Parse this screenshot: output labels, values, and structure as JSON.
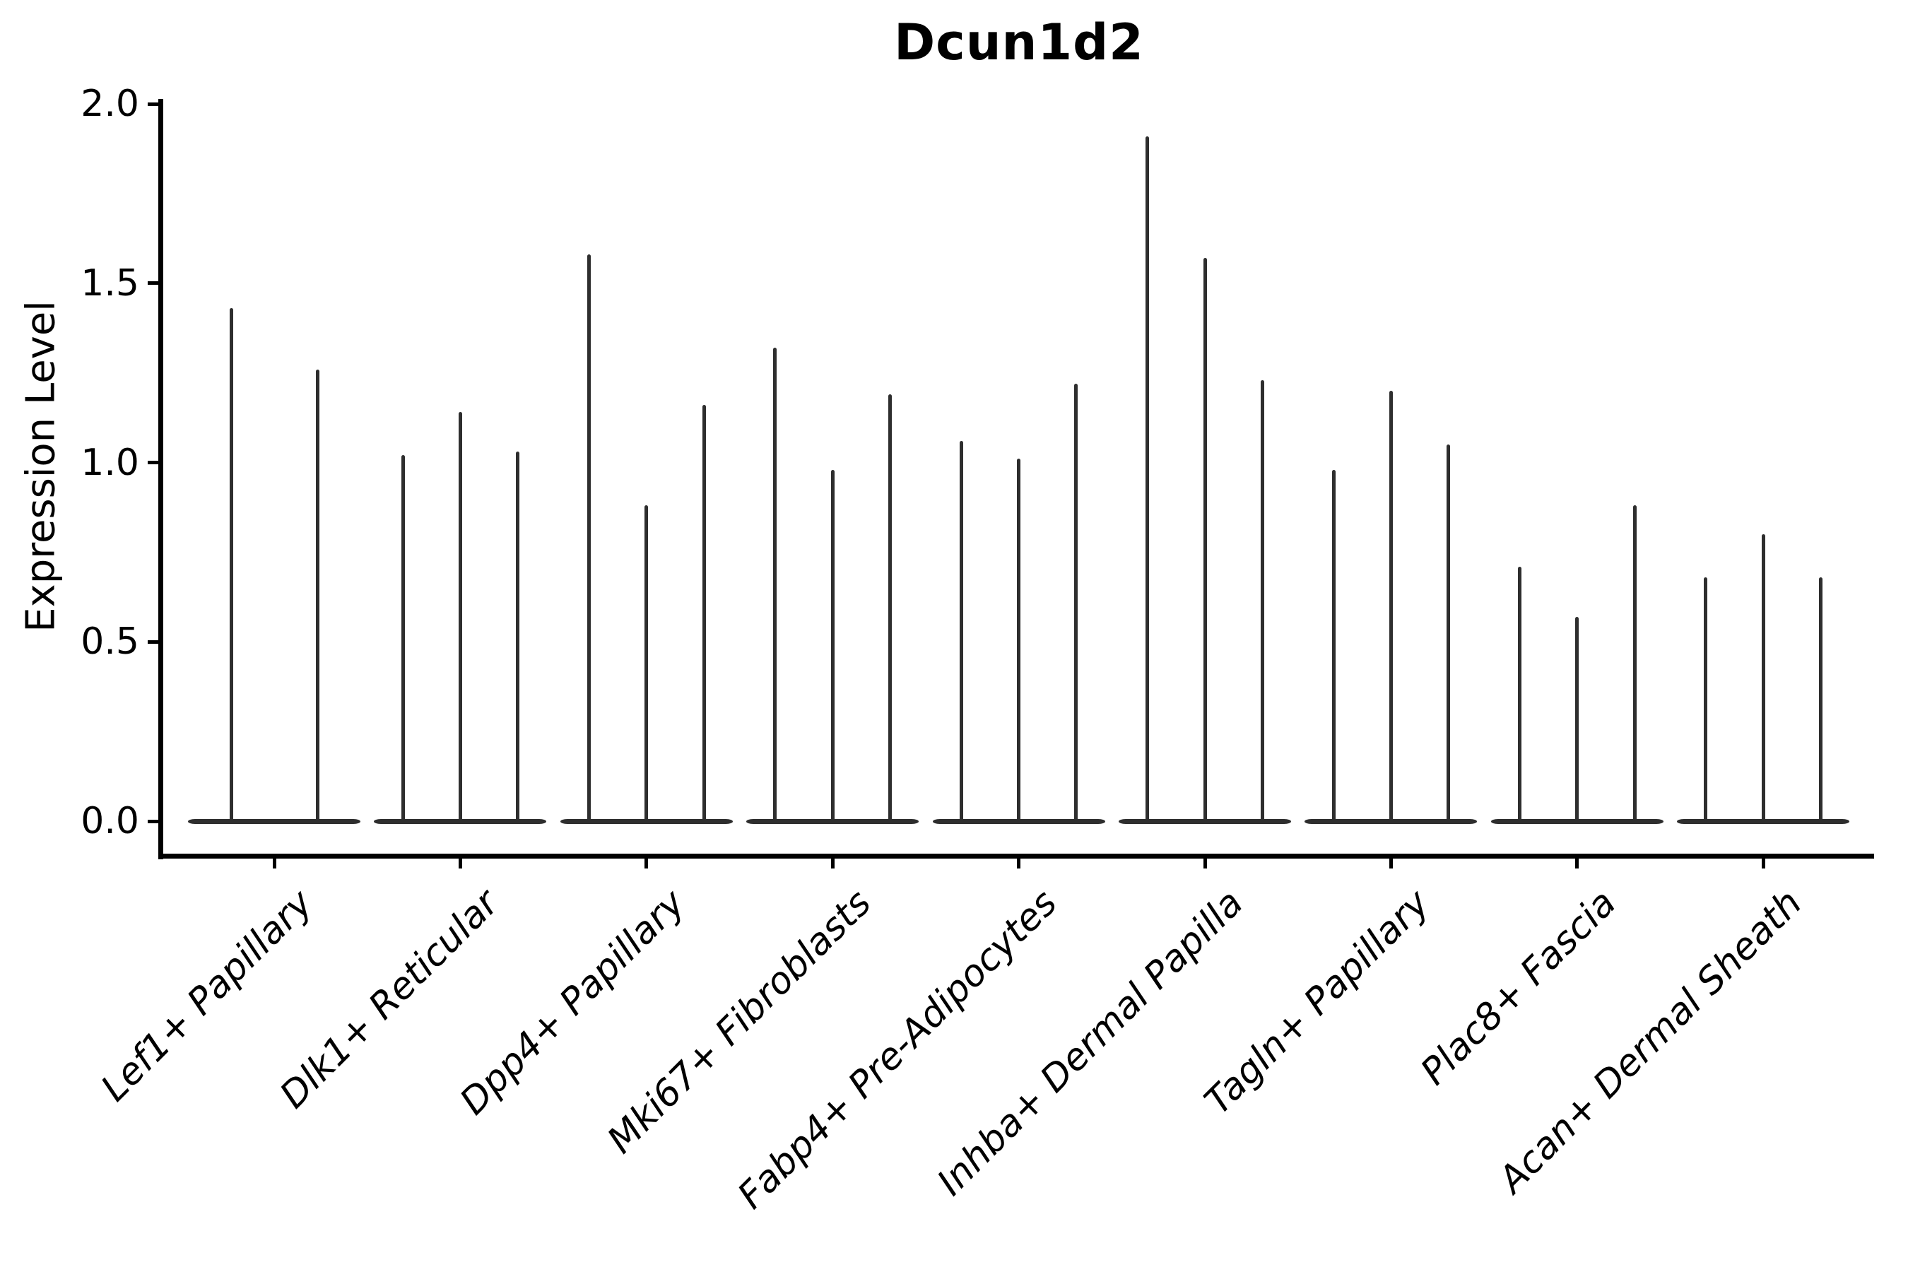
{
  "chart_data": {
    "type": "violin",
    "title": "Dcun1d2",
    "xlabel": "",
    "ylabel": "Expression Level",
    "ylim": [
      -0.1,
      2.01
    ],
    "yticks": [
      0,
      0.5,
      1,
      1.5,
      2
    ],
    "ytick_labels": [
      "0.0",
      "0.5",
      "1.0",
      "1.5",
      "2.0"
    ],
    "grid": false,
    "legend": "none",
    "baseline_value": 0,
    "violin_glyph": "flat-base-at-zero-with-spike-to-max",
    "categories": [
      "Lef1+ Papillary",
      "Dlk1+ Reticular",
      "Dpp4+ Papillary",
      "Mki67+ Fibroblasts",
      "Fabp4+ Pre-Adipocytes",
      "Inhba+ Dermal Papilla",
      "Tagln+ Papillary",
      "Plac8+ Fascia",
      "Acan+ Dermal Sheath"
    ],
    "groups": [
      {
        "category": "Lef1+ Papillary",
        "violin_maxima": [
          1.43,
          1.26
        ]
      },
      {
        "category": "Dlk1+ Reticular",
        "violin_maxima": [
          1.02,
          1.14,
          1.03
        ]
      },
      {
        "category": "Dpp4+ Papillary",
        "violin_maxima": [
          1.58,
          0.88,
          1.16
        ]
      },
      {
        "category": "Mki67+ Fibroblasts",
        "violin_maxima": [
          1.32,
          0.98,
          1.19
        ]
      },
      {
        "category": "Fabp4+ Pre-Adipocytes",
        "violin_maxima": [
          1.06,
          1.01,
          1.22
        ]
      },
      {
        "category": "Inhba+ Dermal Papilla",
        "violin_maxima": [
          1.91,
          1.57,
          1.23
        ]
      },
      {
        "category": "Tagln+ Papillary",
        "violin_maxima": [
          0.98,
          1.2,
          1.05
        ]
      },
      {
        "category": "Plac8+ Fascia",
        "violin_maxima": [
          0.71,
          0.57,
          0.88
        ]
      },
      {
        "category": "Acan+ Dermal Sheath",
        "violin_maxima": [
          0.68,
          0.8,
          0.68
        ]
      }
    ],
    "style": {
      "violin_color": "#2e2e2e",
      "axis_color": "#000000",
      "background": "#ffffff",
      "title_bold": true,
      "x_labels_italic": true,
      "x_label_rotation_deg": 45
    }
  }
}
